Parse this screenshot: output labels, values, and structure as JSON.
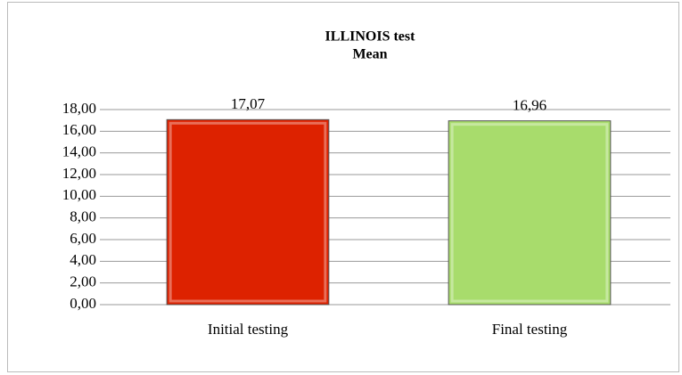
{
  "chart_data": {
    "type": "bar",
    "title": "ILLINOIS test",
    "subtitle": "Mean",
    "categories": [
      "Initial testing",
      "Final testing"
    ],
    "values": [
      17.07,
      16.96
    ],
    "value_labels": [
      "17,07",
      "16,96"
    ],
    "colors": [
      "#dd2200",
      "#a8dc6c"
    ],
    "ylim": [
      0,
      18
    ],
    "yticks": [
      {
        "value": 0,
        "label": "0,00"
      },
      {
        "value": 2,
        "label": "2,00"
      },
      {
        "value": 4,
        "label": "4,00"
      },
      {
        "value": 6,
        "label": "6,00"
      },
      {
        "value": 8,
        "label": "8,00"
      },
      {
        "value": 10,
        "label": "10,00"
      },
      {
        "value": 12,
        "label": "12,00"
      },
      {
        "value": 14,
        "label": "14,00"
      },
      {
        "value": 16,
        "label": "16,00"
      },
      {
        "value": 18,
        "label": "18,00"
      }
    ],
    "grid": true
  }
}
